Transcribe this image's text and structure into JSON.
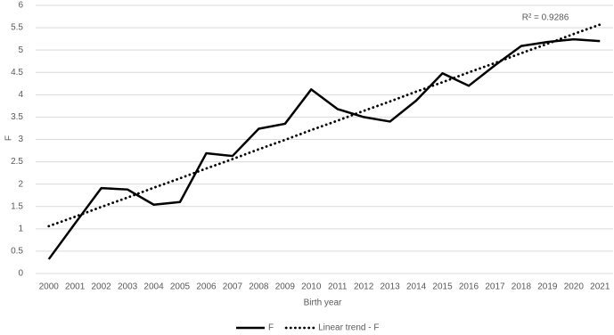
{
  "chart_data": {
    "type": "line",
    "y_label": "F",
    "x_label": "Birth year",
    "annotation": "R² = 0.9286",
    "categories": [
      "2000",
      "2001",
      "2002",
      "2003",
      "2004",
      "2005",
      "2006",
      "2007",
      "2008",
      "2009",
      "2010",
      "2011",
      "2012",
      "2013",
      "2014",
      "2015",
      "2016",
      "2017",
      "2018",
      "2019",
      "2020",
      "2021"
    ],
    "series": [
      {
        "name": "F",
        "color": "#000000",
        "line_style": "solid",
        "values": [
          0.32,
          1.12,
          1.91,
          1.88,
          1.54,
          1.6,
          2.69,
          2.63,
          3.24,
          3.35,
          4.12,
          3.68,
          3.5,
          3.4,
          3.87,
          4.48,
          4.2,
          4.66,
          5.09,
          5.18,
          5.24,
          5.2
        ]
      },
      {
        "name": "Linear trend - F",
        "color": "#000000",
        "line_style": "dotted",
        "values": [
          1.06,
          1.27,
          1.49,
          1.7,
          1.92,
          2.13,
          2.35,
          2.56,
          2.78,
          2.99,
          3.21,
          3.42,
          3.64,
          3.85,
          4.07,
          4.28,
          4.5,
          4.71,
          4.93,
          5.14,
          5.36,
          5.57
        ]
      }
    ],
    "ylim": [
      0,
      6
    ],
    "yticks": [
      0,
      0.5,
      1,
      1.5,
      2,
      2.5,
      3,
      3.5,
      4,
      4.5,
      5,
      5.5,
      6
    ],
    "grid": true,
    "legend": "bottom"
  }
}
